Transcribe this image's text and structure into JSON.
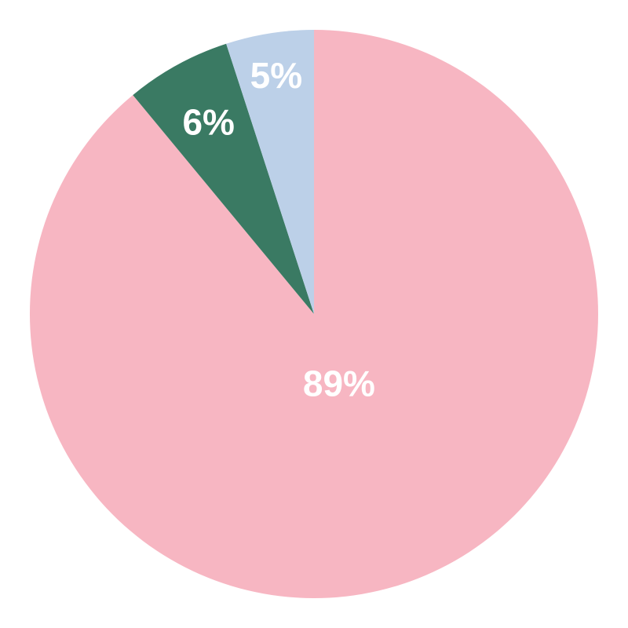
{
  "chart_data": {
    "type": "pie",
    "title": "",
    "start": "top",
    "direction": "clockwise",
    "slices": [
      {
        "label": "89%",
        "value": 89,
        "color": "#f7b6c2"
      },
      {
        "label": "6%",
        "value": 6,
        "color": "#3a7a63"
      },
      {
        "label": "5%",
        "value": 5,
        "color": "#bcd0e8"
      }
    ]
  }
}
